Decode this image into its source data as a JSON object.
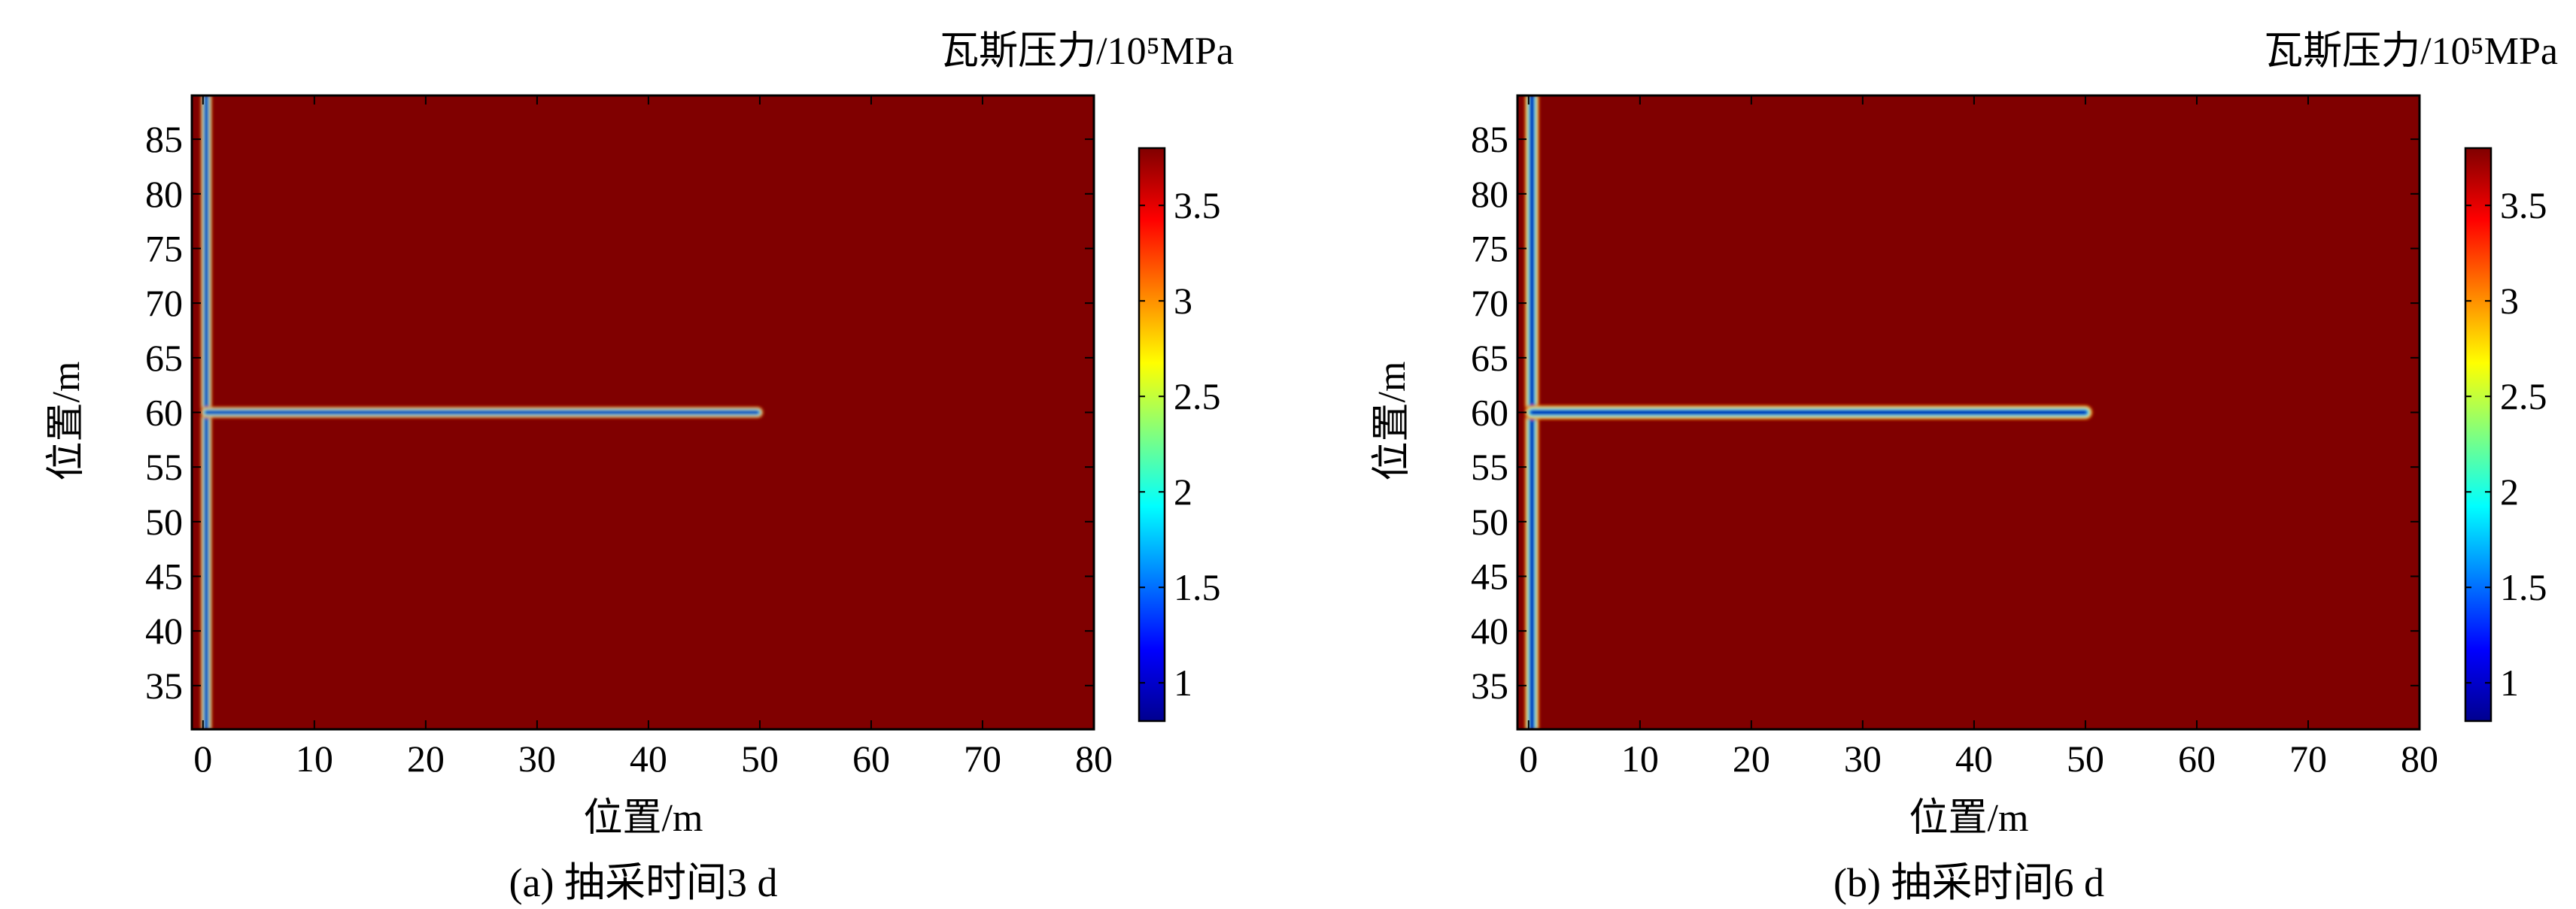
{
  "chart_data": [
    {
      "type": "heatmap",
      "caption": "(a) 抽采时间3 d",
      "xlabel": "位置/m",
      "ylabel": "位置/m",
      "colorbar_title": "瓦斯压力/10⁵MPa",
      "xlim": [
        -1,
        80
      ],
      "ylim": [
        31,
        89
      ],
      "xticks": [
        "0",
        "10",
        "20",
        "30",
        "40",
        "50",
        "60",
        "70",
        "80"
      ],
      "yticks": [
        "35",
        "40",
        "45",
        "50",
        "55",
        "60",
        "65",
        "70",
        "75",
        "80",
        "85"
      ],
      "colorbar_range": [
        0.8,
        3.8
      ],
      "colorbar_ticks": [
        "1",
        "1.5",
        "2",
        "2.5",
        "3",
        "3.5"
      ],
      "colormap": "jet",
      "background_value": 3.8,
      "min_value": 0.8,
      "features": [
        {
          "kind": "vertical-borehole",
          "x": 0.3,
          "y_from": 31,
          "y_to": 89,
          "halfwidth_m": 0.45
        },
        {
          "kind": "horizontal-borehole",
          "y": 60,
          "x_from": 0.3,
          "x_to": 49.8,
          "halfwidth_m": 0.45
        }
      ]
    },
    {
      "type": "heatmap",
      "caption": "(b) 抽采时间6 d",
      "xlabel": "位置/m",
      "ylabel": "位置/m",
      "colorbar_title": "瓦斯压力/10⁵MPa",
      "xlim": [
        -1,
        80
      ],
      "ylim": [
        31,
        89
      ],
      "xticks": [
        "0",
        "10",
        "20",
        "30",
        "40",
        "50",
        "60",
        "70",
        "80"
      ],
      "yticks": [
        "35",
        "40",
        "45",
        "50",
        "55",
        "60",
        "65",
        "70",
        "75",
        "80",
        "85"
      ],
      "colorbar_range": [
        0.8,
        3.8
      ],
      "colorbar_ticks": [
        "1",
        "1.5",
        "2",
        "2.5",
        "3",
        "3.5"
      ],
      "colormap": "jet",
      "background_value": 3.8,
      "min_value": 0.8,
      "features": [
        {
          "kind": "vertical-borehole",
          "x": 0.3,
          "y_from": 31,
          "y_to": 89,
          "halfwidth_m": 0.6
        },
        {
          "kind": "horizontal-borehole",
          "y": 60,
          "x_from": 0.3,
          "x_to": 50,
          "halfwidth_m": 0.6
        }
      ]
    }
  ]
}
